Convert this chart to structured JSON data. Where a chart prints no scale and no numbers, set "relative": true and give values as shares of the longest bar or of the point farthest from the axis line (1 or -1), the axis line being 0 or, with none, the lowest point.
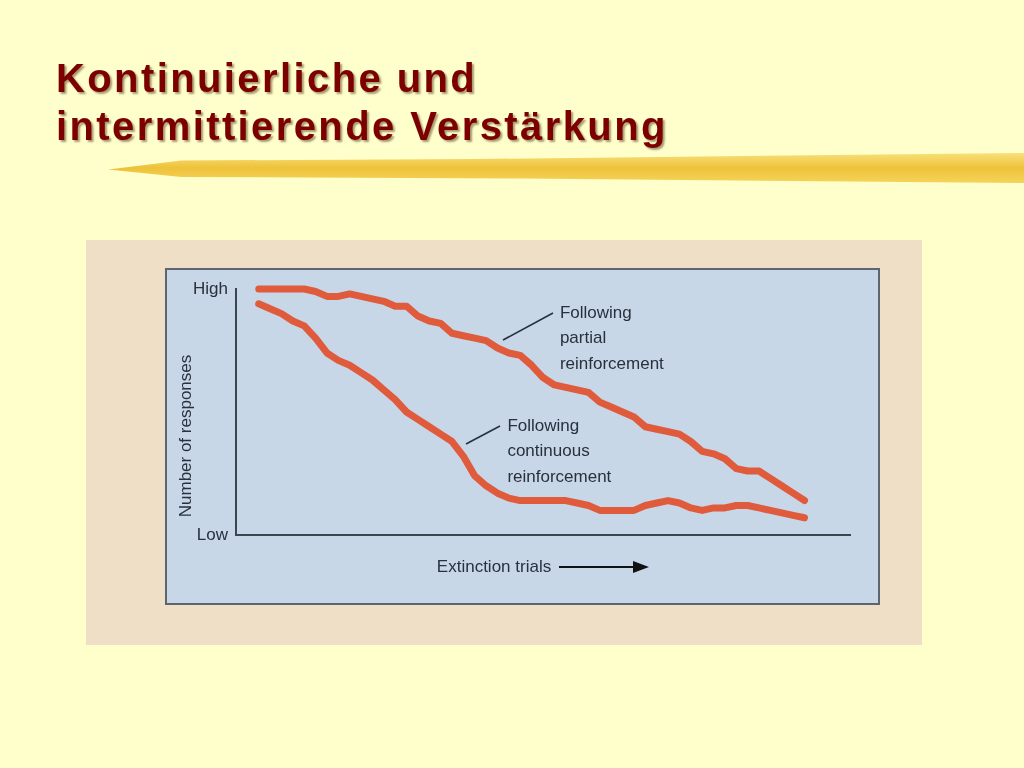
{
  "chart_data": {
    "type": "line",
    "title": "Kontinuierliche und intermittierende Verstärkung",
    "xlabel": "Extinction trials",
    "ylabel": "Number of responses",
    "relative": true,
    "categories": [
      null,
      null,
      null,
      null,
      null,
      null,
      null,
      null,
      null,
      null,
      null,
      null,
      null,
      null,
      null,
      null,
      null,
      null,
      null,
      null,
      null,
      null,
      null,
      null,
      null,
      null,
      null,
      null,
      null,
      null,
      null,
      null,
      null,
      null,
      null,
      null,
      null,
      null,
      null,
      null,
      null,
      null,
      null,
      null,
      null,
      null,
      null,
      null,
      null,
      null,
      null,
      null,
      null,
      null,
      null
    ],
    "series": [
      {
        "name": "Following partial reinforcement",
        "color": "#e05a3c",
        "values": [
          null,
          null,
          1,
          1,
          1,
          1,
          1,
          0.99,
          0.97,
          0.97,
          0.98,
          0.97,
          0.96,
          0.95,
          0.93,
          0.93,
          0.89,
          0.87,
          0.86,
          0.82,
          0.81,
          0.8,
          0.79,
          0.76,
          0.74,
          0.73,
          0.69,
          0.64,
          0.61,
          0.6,
          0.59,
          0.58,
          0.54,
          0.52,
          0.5,
          0.48,
          0.44,
          0.43,
          0.42,
          0.41,
          0.38,
          0.34,
          0.33,
          0.31,
          0.27,
          0.26,
          0.26,
          0.23,
          0.2,
          0.17,
          0.14,
          null,
          null,
          null,
          null
        ]
      },
      {
        "name": "Following continuous reinforcement",
        "color": "#e05a3c",
        "values": [
          null,
          null,
          0.94,
          0.92,
          0.9,
          0.87,
          0.85,
          0.8,
          0.74,
          0.71,
          0.69,
          0.66,
          0.63,
          0.59,
          0.55,
          0.5,
          0.47,
          0.44,
          0.41,
          0.38,
          0.32,
          0.24,
          0.2,
          0.17,
          0.15,
          0.14,
          0.14,
          0.14,
          0.14,
          0.14,
          0.13,
          0.12,
          0.1,
          0.1,
          0.1,
          0.1,
          0.12,
          0.13,
          0.14,
          0.13,
          0.11,
          0.1,
          0.11,
          0.11,
          0.12,
          0.12,
          0.11,
          0.1,
          0.09,
          0.08,
          0.07,
          null,
          null,
          null,
          null
        ]
      }
    ],
    "annotations": [
      "High",
      "Low"
    ]
  }
}
